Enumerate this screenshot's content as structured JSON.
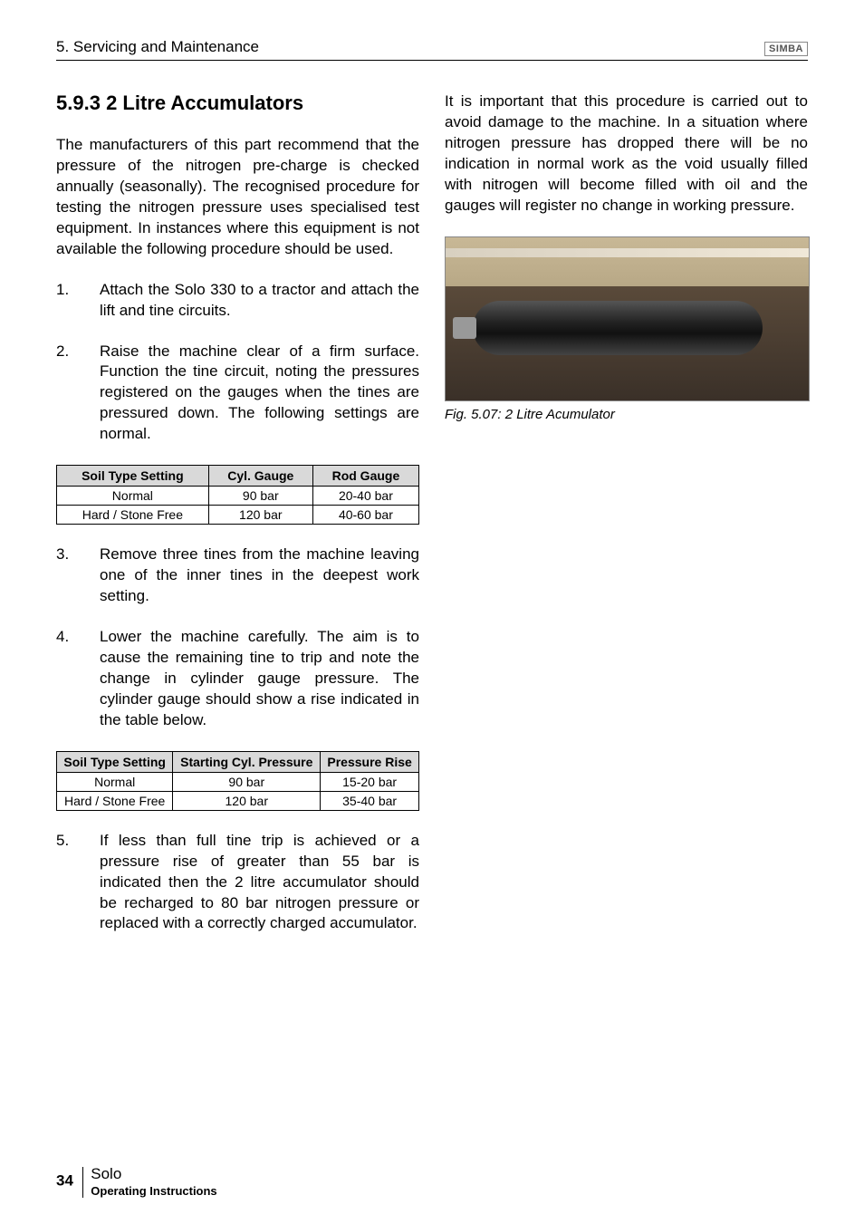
{
  "header": {
    "chapter": "5. Servicing and Maintenance",
    "logo": "SIMBA"
  },
  "section": {
    "number": "5.9.3",
    "title": "2 Litre Accumulators"
  },
  "left": {
    "intro": "The manufacturers of this part recommend that the pressure of the nitrogen pre-charge is checked annually (seasonally).  The recognised procedure for testing the nitrogen pressure uses specialised test equipment.  In instances where this equipment is not available the following procedure should be used.",
    "steps": {
      "s1_num": "1.",
      "s1": "Attach the Solo 330 to a tractor and attach the lift and tine circuits.",
      "s2_num": "2.",
      "s2": "Raise the machine clear of a firm surface.  Function the tine circuit, noting the pressures registered on the gauges when the tines are pressured down.  The following settings are normal.",
      "s3_num": "3.",
      "s3": "Remove three tines from the machine leaving one of the inner tines in the deepest work setting.",
      "s4_num": "4.",
      "s4": "Lower the machine carefully.  The aim is to cause the remaining tine to trip and note the change in cylinder gauge pressure.  The cylinder gauge should show a rise indicated in the table below.",
      "s5_num": "5.",
      "s5": "If less than full tine trip is achieved or a pressure rise of greater than 55 bar is indicated then the 2 litre accumulator should be recharged to 80 bar nitrogen pressure or replaced with a correctly charged accumulator."
    }
  },
  "table1": {
    "headers": {
      "c1": "Soil Type Setting",
      "c2": "Cyl. Gauge",
      "c3": "Rod Gauge"
    },
    "rows": [
      {
        "c1": "Normal",
        "c2": "90 bar",
        "c3": "20-40 bar"
      },
      {
        "c1": "Hard / Stone Free",
        "c2": "120 bar",
        "c3": "40-60 bar"
      }
    ]
  },
  "table2": {
    "headers": {
      "c1": "Soil Type Setting",
      "c2": "Starting Cyl. Pressure",
      "c3": "Pressure Rise"
    },
    "rows": [
      {
        "c1": "Normal",
        "c2": "90 bar",
        "c3": "15-20 bar"
      },
      {
        "c1": "Hard / Stone Free",
        "c2": "120 bar",
        "c3": "35-40 bar"
      }
    ]
  },
  "right": {
    "para": "It is important that this procedure is carried out to avoid damage to the machine.  In a situation where nitrogen pressure has dropped there will be no indication in normal work as the void usually filled with nitrogen will become filled with oil and the gauges will register no change in working pressure.",
    "fig_caption": "Fig. 5.07: 2 Litre Acumulator"
  },
  "footer": {
    "page": "34",
    "product": "Solo",
    "subtitle": "Operating Instructions"
  },
  "style": {
    "table_header_bg": "#d9d9d9",
    "body_fontsize": 17,
    "heading_fontsize": 22
  }
}
